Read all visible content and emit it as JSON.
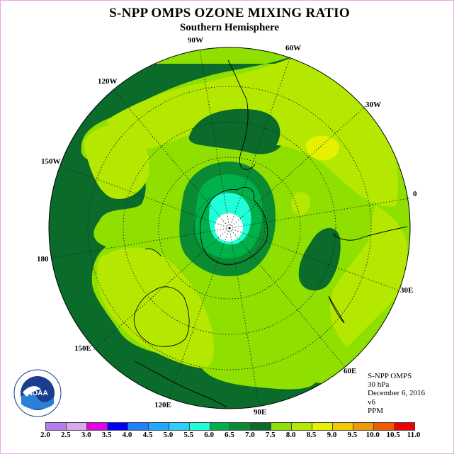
{
  "header": {
    "title": "S-NPP OMPS OZONE MIXING RATIO",
    "subtitle": "Southern Hemisphere"
  },
  "map": {
    "projection": "south polar stereographic",
    "background_level_color": "#0a6b2a",
    "longitude_labels": {
      "w90": "90W",
      "w60": "60W",
      "w30": "30W",
      "zero": "0",
      "e30": "30E",
      "e60": "60E",
      "e90": "90E",
      "e120": "120E",
      "e150": "150E",
      "lon180": "180",
      "w150": "150W",
      "w120": "120W"
    }
  },
  "info": {
    "instrument": "S-NPP OMPS",
    "level": "30 hPa",
    "date": "December 6, 2016",
    "version": "v6",
    "units": "PPM"
  },
  "logo": {
    "text": "NOAA",
    "ring_text": "NATIONAL OCEANIC AND ATMOSPHERIC ADMINISTRATION - U.S. DEPARTMENT OF COMMERCE"
  },
  "colorbar": {
    "ticks": [
      "2.0",
      "2.5",
      "3.0",
      "3.5",
      "4.0",
      "4.5",
      "5.0",
      "5.5",
      "6.0",
      "6.5",
      "7.0",
      "7.5",
      "8.0",
      "8.5",
      "9.0",
      "9.5",
      "10.0",
      "10.5",
      "11.0"
    ],
    "colors": [
      "#b37ff0",
      "#d9a8f0",
      "#e600e6",
      "#0000ff",
      "#1e7fff",
      "#23a8ff",
      "#2ccfff",
      "#20ffd8",
      "#00b04a",
      "#0a8a32",
      "#0a6b2a",
      "#8fe000",
      "#b4e800",
      "#e6f000",
      "#f2c800",
      "#f29800",
      "#f25a00",
      "#f00000",
      "#8b4a2b"
    ]
  }
}
